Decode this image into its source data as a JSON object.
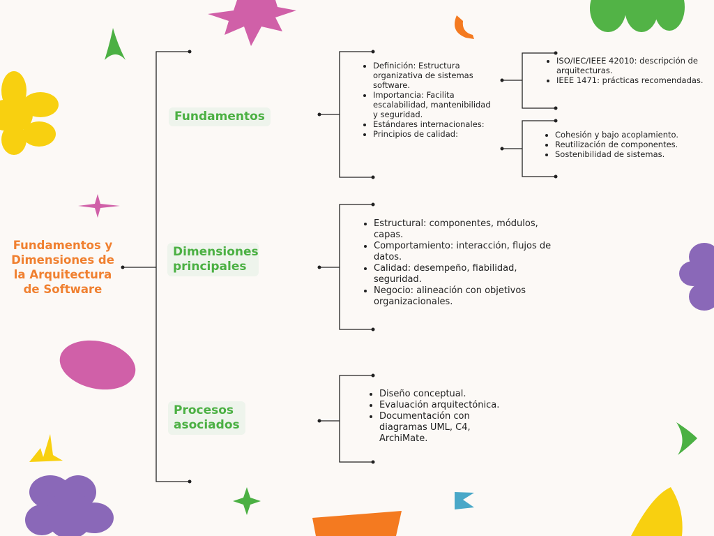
{
  "title": "Fundamentos y Dimensiones de la Arquitectura de Software",
  "colors": {
    "title": "#f08030",
    "branch_text": "#4bb043",
    "branch_bg": "#eef4ec",
    "line": "#222222",
    "background": "#fcf9f6"
  },
  "branches": [
    {
      "label": "Fundamentos",
      "items": [
        "Definición: Estructura organizativa de sistemas software.",
        "Importancia: Facilita escalabilidad, mantenibilidad y seguridad.",
        "Estándares internacionales:",
        "Principios de calidad:"
      ],
      "sub": [
        {
          "items": [
            "ISO/IEC/IEEE 42010: descripción de arquitecturas.",
            "IEEE 1471: prácticas recomendadas."
          ]
        },
        {
          "items": [
            "Cohesión y bajo acoplamiento.",
            "Reutilización de componentes.",
            "Sostenibilidad de sistemas."
          ]
        }
      ]
    },
    {
      "label": "Dimensiones principales",
      "items": [
        "Estructural: componentes, módulos, capas.",
        "Comportamiento: interacción, flujos de datos.",
        "Calidad: desempeño, fiabilidad, seguridad.",
        "Negocio: alineación con objetivos organizacionales."
      ]
    },
    {
      "label": "Procesos asociados",
      "items": [
        "Diseño conceptual.",
        "Evaluación arquitectónica.",
        "Documentación con diagramas UML, C4, ArchiMate."
      ]
    }
  ]
}
